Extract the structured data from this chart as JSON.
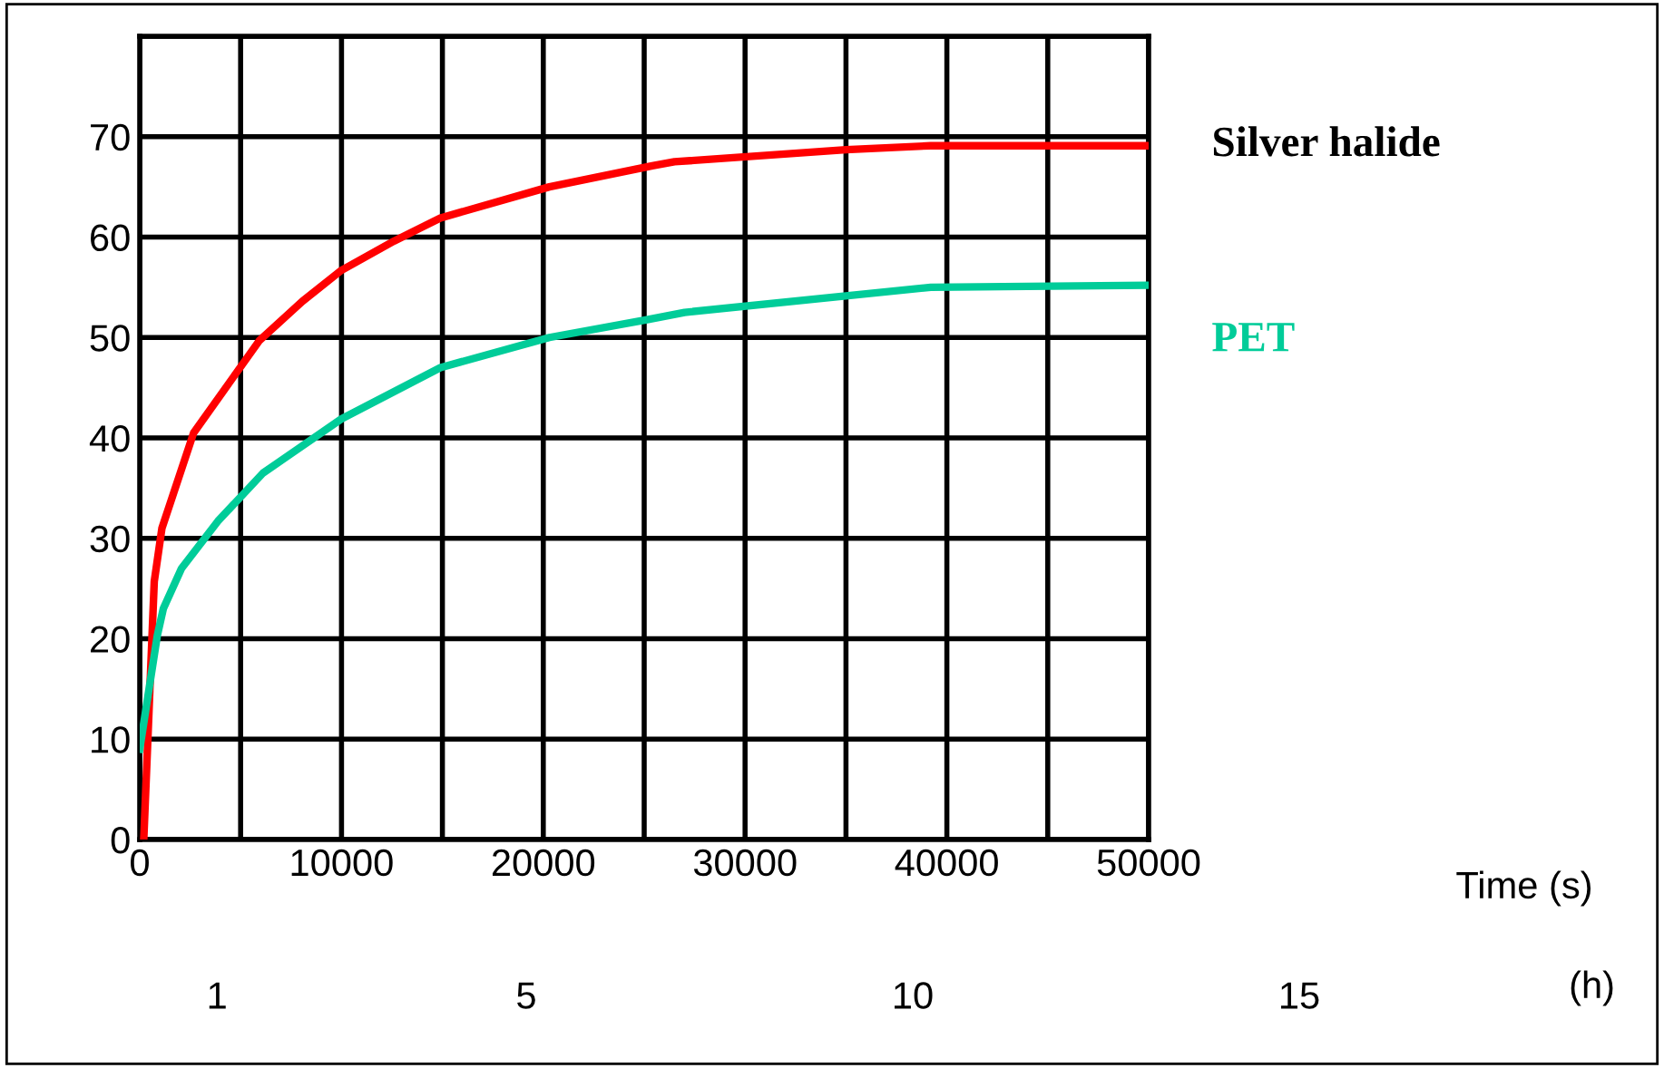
{
  "chart_data": {
    "type": "line",
    "xlim": [
      0,
      50000
    ],
    "xticks": [
      0,
      10000,
      20000,
      30000,
      40000,
      50000
    ],
    "ylim": [
      0,
      80
    ],
    "yticks": [
      0,
      10,
      20,
      30,
      40,
      50,
      60,
      70
    ],
    "grid": true,
    "legend": false,
    "marker": "none",
    "line_style": "solid",
    "series": [
      {
        "name": "Silver halide",
        "color": "#ff0000",
        "x": [
          200,
          720,
          1100,
          2670,
          5930,
          8060,
          10000,
          12600,
          14900,
          20300,
          25400,
          26500,
          35000,
          39200,
          50000
        ],
        "values": [
          0,
          25.7,
          31,
          40.5,
          49.7,
          53.6,
          56.7,
          59.6,
          61.9,
          65,
          67.1,
          67.5,
          68.7,
          69.1,
          69.1
        ]
      },
      {
        "name": "PET",
        "color": "#00cc99",
        "x": [
          0,
          870,
          1170,
          2070,
          3870,
          6110,
          10000,
          14900,
          20300,
          25200,
          27000,
          39200,
          50000
        ],
        "values": [
          9,
          20.3,
          23,
          27,
          31.7,
          36.5,
          41.9,
          47,
          50,
          51.8,
          52.5,
          55,
          55.2
        ]
      }
    ],
    "x2lim": [
      0,
      15
    ],
    "x2ticks": [
      1,
      5,
      10,
      15
    ],
    "x2label": "(h)",
    "annotations": [
      "Time (s)"
    ]
  }
}
